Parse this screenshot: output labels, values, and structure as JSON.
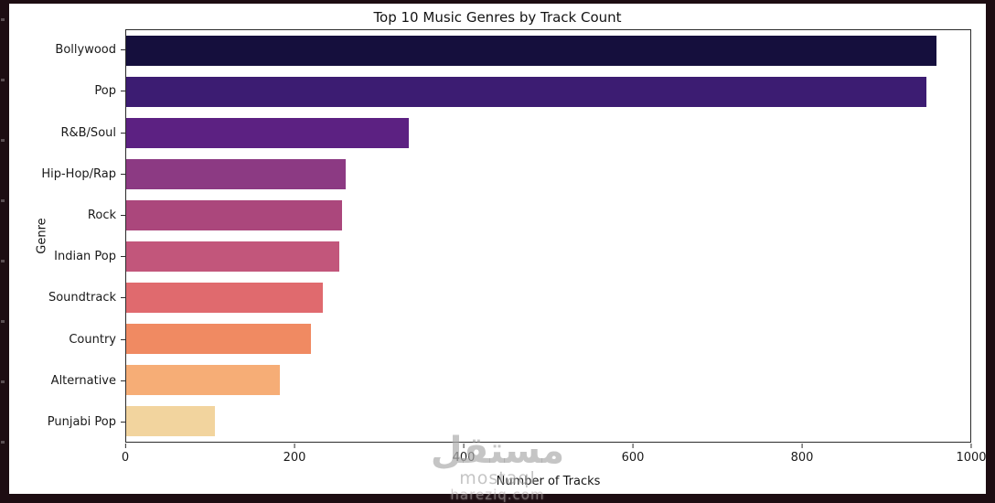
{
  "page": {
    "background_color": "#1d0d12",
    "figure_background": "#ffffff"
  },
  "watermark": {
    "line1": "مستقل",
    "line2": "mostaql",
    "line3": "hareziq.com"
  },
  "chart_data": {
    "type": "bar",
    "orientation": "horizontal",
    "title": "Top 10 Music Genres by Track Count",
    "xlabel": "Number of Tracks",
    "ylabel": "Genre",
    "categories": [
      "Bollywood",
      "Pop",
      "R&B/Soul",
      "Hip-Hop/Rap",
      "Rock",
      "Indian Pop",
      "Soundtrack",
      "Country",
      "Alternative",
      "Punjabi Pop"
    ],
    "values": [
      960,
      948,
      335,
      260,
      256,
      252,
      233,
      219,
      182,
      105
    ],
    "bar_colors": [
      "#150f3d",
      "#3c1c72",
      "#5c2182",
      "#8c3a83",
      "#ab477c",
      "#c2567b",
      "#e06a6e",
      "#f08a62",
      "#f6ad76",
      "#f2d49e"
    ],
    "xlim": [
      0,
      1000
    ],
    "xticks": [
      0,
      200,
      400,
      600,
      800,
      1000
    ],
    "grid": false,
    "legend": null
  }
}
